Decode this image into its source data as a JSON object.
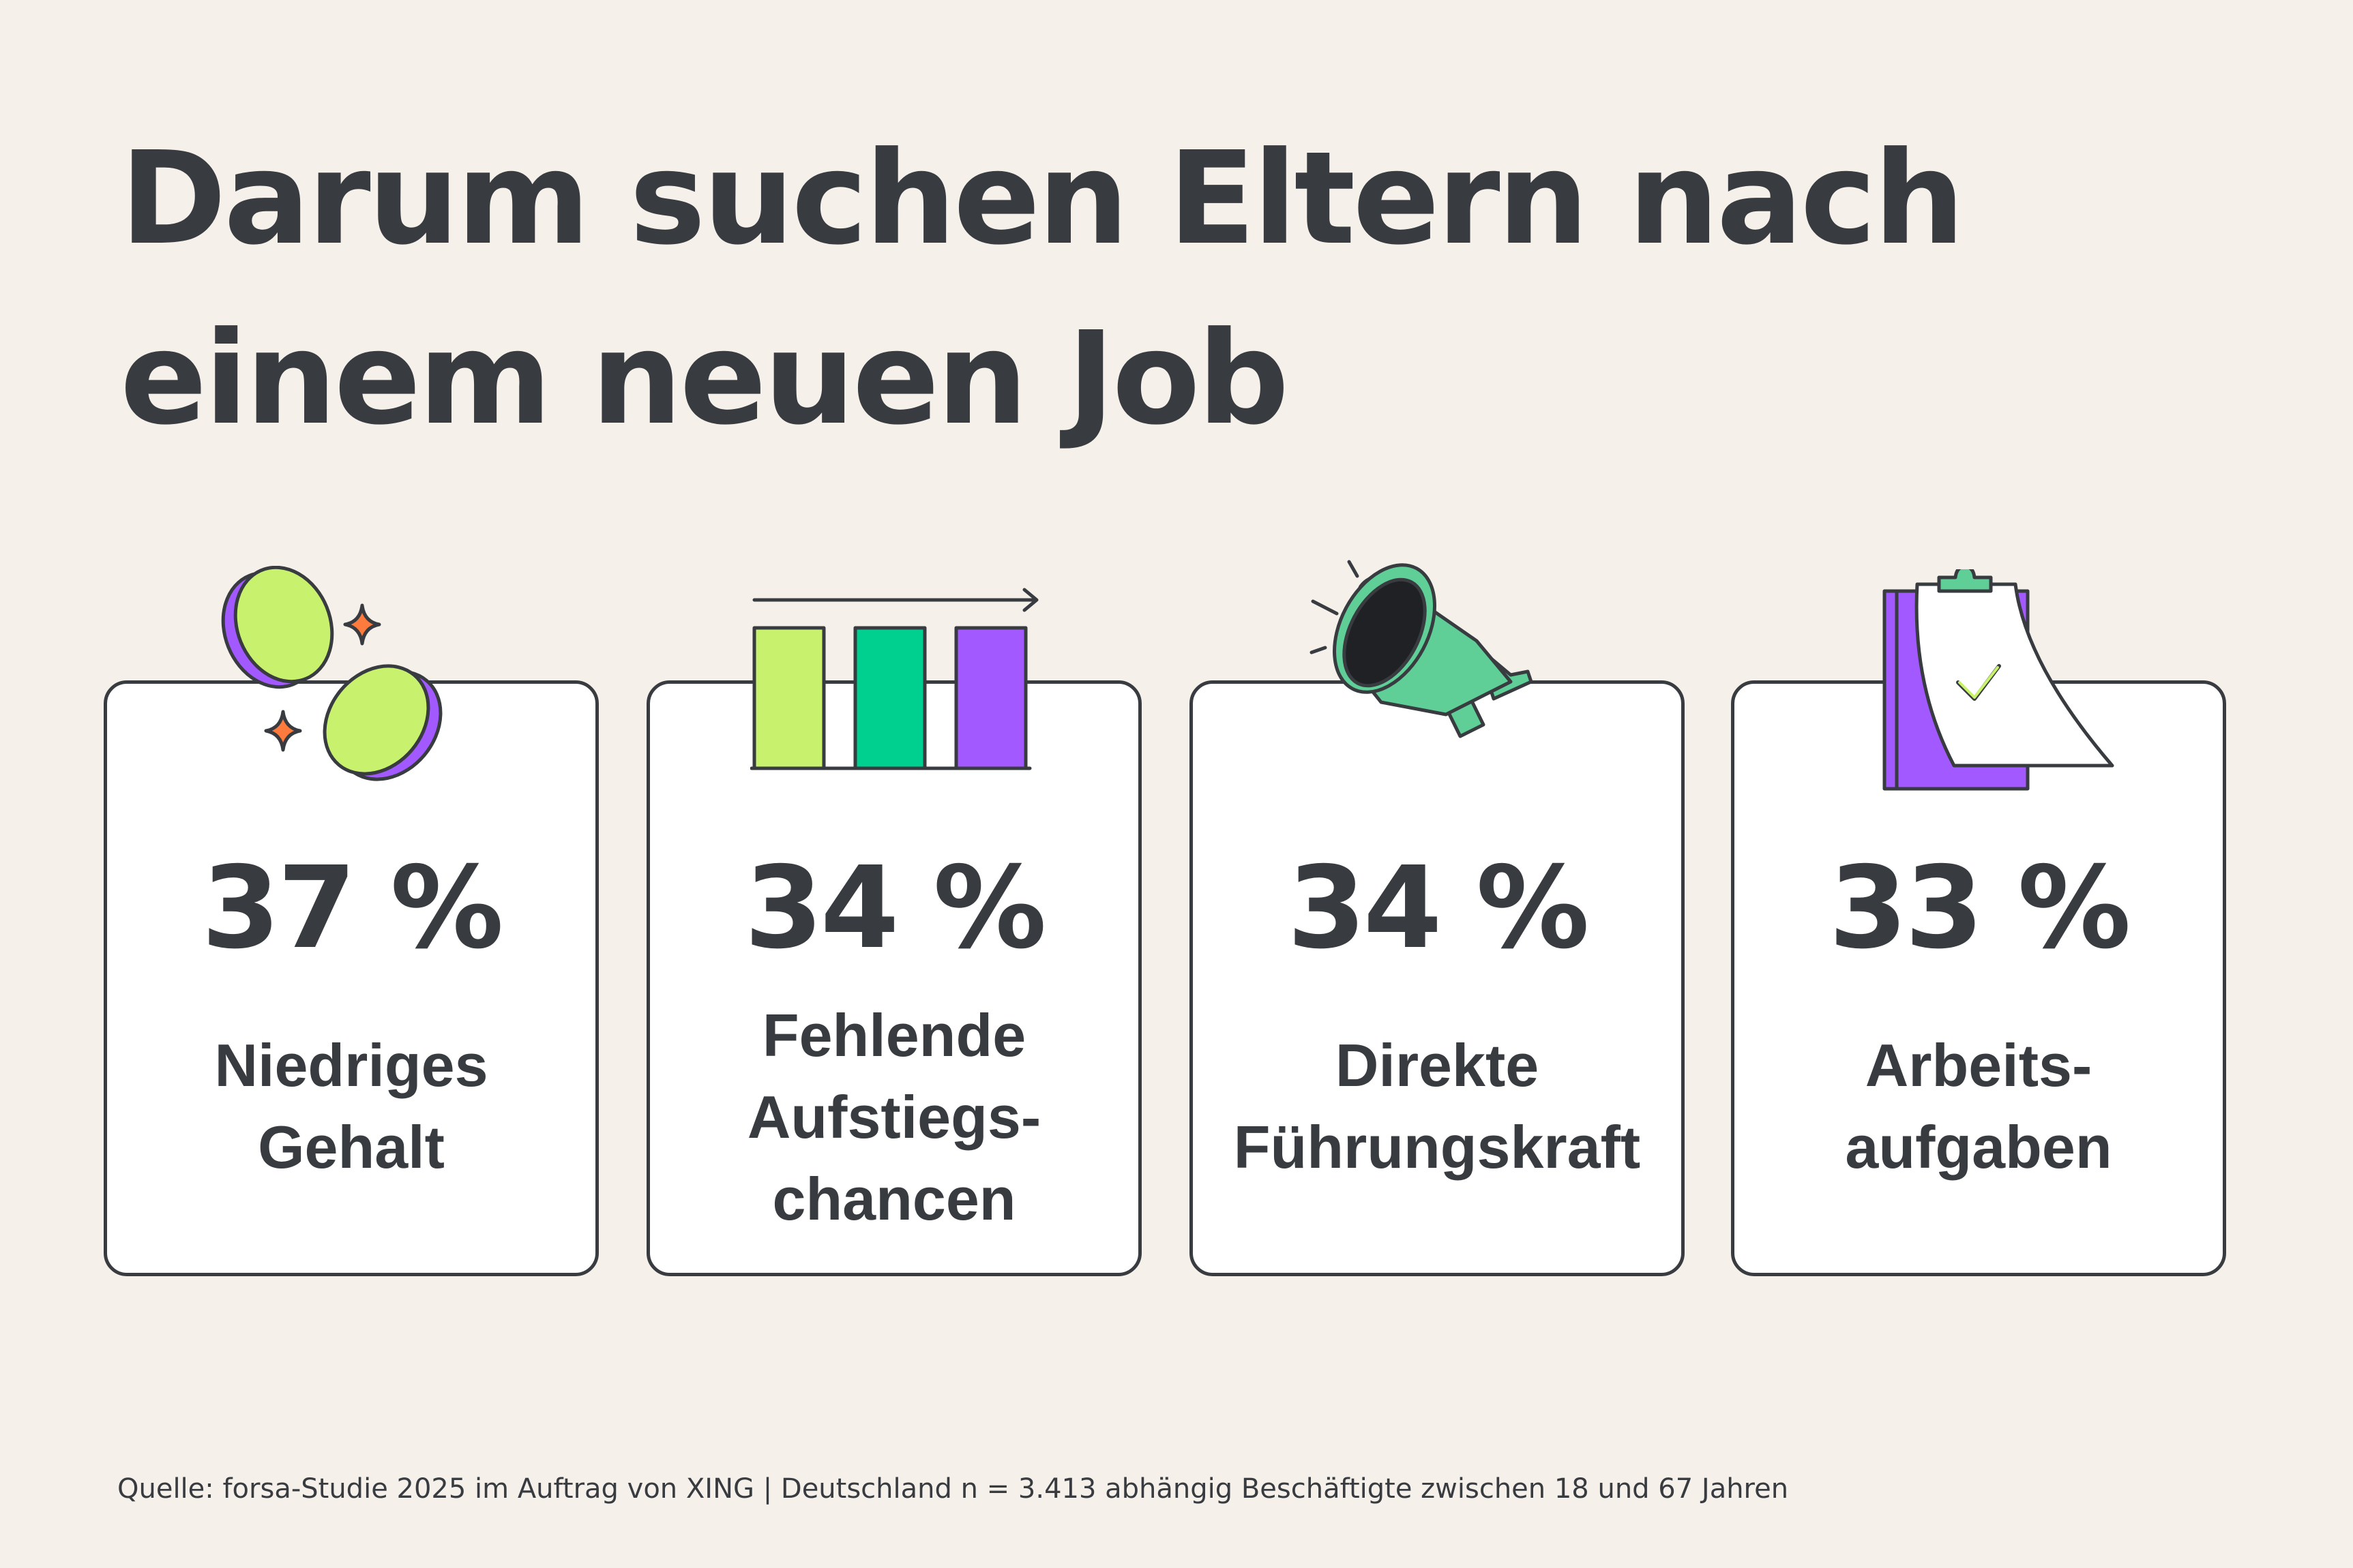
{
  "title": {
    "line1": "Darum suchen Eltern nach",
    "line2": "einem neuen Job"
  },
  "cards": [
    {
      "value": "37 %",
      "percent": 37,
      "label_lines": [
        "Niedriges",
        "Gehalt"
      ],
      "icon": "coins-icon"
    },
    {
      "value": "34 %",
      "percent": 34,
      "label_lines": [
        "Fehlende",
        "Aufstiegs-",
        "chancen"
      ],
      "icon": "bar-chart-icon"
    },
    {
      "value": "34 %",
      "percent": 34,
      "label_lines": [
        "Direkte",
        "Führungskraft"
      ],
      "icon": "megaphone-icon"
    },
    {
      "value": "33 %",
      "percent": 33,
      "label_lines": [
        "Arbeits-",
        "aufgaben"
      ],
      "icon": "clipboard-check-icon"
    }
  ],
  "source": "Quelle: forsa-Studie 2025 im Auftrag von XING | Deutschland n = 3.413 abhängig Beschäftigte zwischen 18 und 67 Jahren",
  "colors": {
    "background": "#f5f0ea",
    "text": "#383b3f",
    "lime": "#c8f16d",
    "green": "#00d08f",
    "mint": "#5fcf97",
    "purple": "#a259ff",
    "orange": "#ff7a3d"
  }
}
